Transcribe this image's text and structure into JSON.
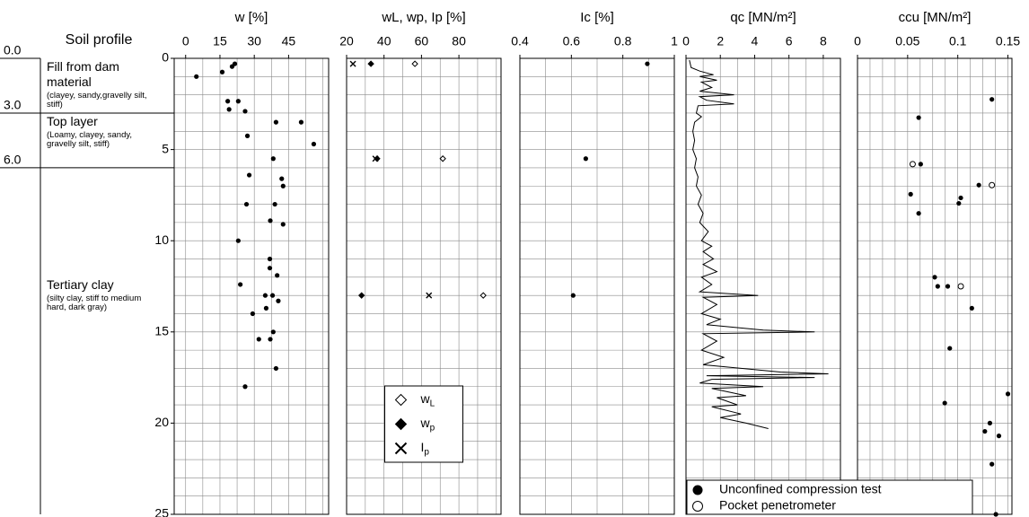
{
  "soil_profile": {
    "title": "Soil profile",
    "layers": [
      {
        "top": {
          "value": 0,
          "label": "0.0"
        },
        "name": "Fill from dam material",
        "note": "(clayey, sandy,gravelly silt, stiff)"
      },
      {
        "top": {
          "value": 3,
          "label": "3.0"
        },
        "name": "Top layer",
        "note": "(Loamy, clayey, sandy, gravelly silt, stiff)"
      },
      {
        "top": {
          "value": 6,
          "label": "6.0"
        },
        "name": "Tertiary clay",
        "note": "(silty clay, stiff to medium hard, dark gray)"
      }
    ]
  },
  "chart_data": [
    {
      "type": "scatter",
      "title": "w  [%]",
      "xlim": [
        -5,
        62.5
      ],
      "xticks": [
        0,
        15,
        30,
        45
      ],
      "xgrid": [
        0,
        7.5,
        15,
        22.5,
        30,
        37.5,
        45,
        52.5,
        60
      ],
      "ylim": [
        0,
        25
      ],
      "y_inverted": true,
      "yticks": [
        0,
        5,
        10,
        15,
        20,
        25
      ],
      "ygrid": [
        1,
        2,
        3,
        4,
        5,
        6,
        7,
        8,
        9,
        10,
        11,
        12,
        13,
        14,
        15,
        16,
        17,
        18,
        19,
        20,
        21,
        22,
        23,
        24
      ],
      "series": [
        {
          "marker": "filled-circle",
          "color": "#000000",
          "x": [
            21.5,
            20.3,
            16,
            4.7,
            18.4,
            19,
            23,
            26,
            39.5,
            50.5,
            27,
            56,
            38.3,
            27.8,
            42,
            42.6,
            26.6,
            39,
            37,
            42.6,
            23,
            36.8,
            36.8,
            40,
            23.9,
            34.8,
            38,
            40.5,
            35.2,
            29.3,
            38.3,
            32,
            37,
            39.5,
            26
          ],
          "y": [
            0.3,
            0.45,
            0.75,
            1.0,
            2.35,
            2.8,
            2.35,
            2.9,
            3.5,
            3.5,
            4.25,
            4.7,
            5.5,
            6.4,
            6.6,
            7.0,
            8.0,
            8.0,
            8.9,
            9.1,
            10,
            11,
            11.5,
            11.9,
            12.4,
            13,
            13,
            13.3,
            13.7,
            14,
            15,
            15.4,
            15.4,
            17,
            18
          ]
        }
      ]
    },
    {
      "type": "scatter",
      "title": "wL, wp, Ip  [%]",
      "xlim": [
        20,
        102.5
      ],
      "xticks": [
        20,
        40,
        60,
        80
      ],
      "xgrid": [
        30,
        40,
        50,
        60,
        70,
        80,
        90,
        100
      ],
      "ylim": [
        0,
        25
      ],
      "y_inverted": true,
      "ygrid": [
        1,
        2,
        3,
        4,
        5,
        6,
        7,
        8,
        9,
        10,
        11,
        12,
        13,
        14,
        15,
        16,
        17,
        18,
        19,
        20,
        21,
        22,
        23,
        24
      ],
      "legend": "lower-center",
      "series": [
        {
          "name": "wL",
          "marker": "open-diamond",
          "color": "#000000",
          "x": [
            56.5,
            71.4,
            93
          ],
          "y": [
            0.3,
            5.5,
            13
          ]
        },
        {
          "name": "wp",
          "marker": "filled-diamond",
          "color": "#000000",
          "x": [
            33,
            36.3,
            28
          ],
          "y": [
            0.3,
            5.5,
            13
          ]
        },
        {
          "name": "Ip",
          "marker": "cross",
          "color": "#000000",
          "x": [
            23.4,
            35.4,
            64
          ],
          "y": [
            0.3,
            5.5,
            13
          ]
        }
      ]
    },
    {
      "type": "scatter",
      "title": "Ic  [%]",
      "xlim": [
        0.4,
        1
      ],
      "xticks": [
        0.4,
        0.6,
        0.8,
        1
      ],
      "xgrid": [
        0.5,
        0.6,
        0.7,
        0.8,
        0.9
      ],
      "ylim": [
        0,
        25
      ],
      "y_inverted": true,
      "ygrid": [
        1,
        2,
        3,
        4,
        5,
        6,
        7,
        8,
        9,
        10,
        11,
        12,
        13,
        14,
        15,
        16,
        17,
        18,
        19,
        20,
        21,
        22,
        23,
        24
      ],
      "series": [
        {
          "marker": "filled-circle",
          "color": "#000000",
          "x": [
            0.895,
            0.656,
            0.607
          ],
          "y": [
            0.3,
            5.5,
            13
          ]
        }
      ]
    },
    {
      "type": "line",
      "title": "qc  [MN/m²]",
      "xlim": [
        0,
        9
      ],
      "xticks": [
        0,
        2,
        4,
        6,
        8
      ],
      "xgrid": [
        1,
        2,
        3,
        4,
        5,
        6,
        7,
        8
      ],
      "ylim": [
        0,
        25
      ],
      "y_inverted": true,
      "ygrid": [
        1,
        2,
        3,
        4,
        5,
        6,
        7,
        8,
        9,
        10,
        11,
        12,
        13,
        14,
        15,
        16,
        17,
        18,
        19,
        20,
        21,
        22,
        23,
        24
      ],
      "series": [
        {
          "color": "#000000",
          "x": [
            0.2,
            0.3,
            0.8,
            1.6,
            0.8,
            1.8,
            0.9,
            1.5,
            0.8,
            2.8,
            0.8,
            1.2,
            2.8,
            0.7,
            0.6,
            0.9,
            0.5,
            0.4,
            0.5,
            0.4,
            0.6,
            0.5,
            0.7,
            0.6,
            0.9,
            0.7,
            1.0,
            0.8,
            1.3,
            0.9,
            1.5,
            1.0,
            1.6,
            1.0,
            1.8,
            0.9,
            1.5,
            0.8,
            4.2,
            1.0,
            1.8,
            0.9,
            2.0,
            1.2,
            4.5,
            7.5,
            1.0,
            1.8,
            0.9,
            2.2,
            1.0,
            5.5,
            8.3,
            1.2,
            7.5,
            1.5,
            0.8,
            4.5,
            1.5,
            3.5,
            1.8,
            3.0,
            1.5,
            3.2,
            2.0,
            3.5,
            4.8
          ],
          "y": [
            0.1,
            0.5,
            0.7,
            0.9,
            1.0,
            1.2,
            1.3,
            1.6,
            1.8,
            2.0,
            2.1,
            2.3,
            2.5,
            2.6,
            3.0,
            3.2,
            3.5,
            4.0,
            4.5,
            5.0,
            5.5,
            6.0,
            6.5,
            7.0,
            7.5,
            8.0,
            8.5,
            9.0,
            9.5,
            10.0,
            10.3,
            10.6,
            11.0,
            11.3,
            11.7,
            12.0,
            12.4,
            12.8,
            13.0,
            13.1,
            13.5,
            14.0,
            14.3,
            14.6,
            14.9,
            15.0,
            15.1,
            15.5,
            16.0,
            16.4,
            16.8,
            17.2,
            17.3,
            17.4,
            17.5,
            17.6,
            17.8,
            18.0,
            18.1,
            18.5,
            18.6,
            19.0,
            19.1,
            19.5,
            19.7,
            20.0,
            20.3
          ]
        }
      ]
    },
    {
      "type": "scatter",
      "title": "ccu  [MN/m²]",
      "xlim": [
        0,
        0.154
      ],
      "xticks": [
        0,
        0.05,
        0.1,
        0.15
      ],
      "xgrid": [
        0.0125,
        0.025,
        0.0375,
        0.05,
        0.0625,
        0.075,
        0.0875,
        0.1,
        0.1125,
        0.125,
        0.1375,
        0.15
      ],
      "ylim": [
        0,
        25
      ],
      "y_inverted": true,
      "ygrid": [
        1,
        2,
        3,
        4,
        5,
        6,
        7,
        8,
        9,
        10,
        11,
        12,
        13,
        14,
        15,
        16,
        17,
        18,
        19,
        20,
        21,
        22,
        23,
        24
      ],
      "legend": "lower-left",
      "series": [
        {
          "name": "Unconfined compression test",
          "marker": "filled-circle",
          "color": "#000000",
          "x": [
            0.134,
            0.061,
            0.063,
            0.121,
            0.103,
            0.101,
            0.053,
            0.061,
            0.077,
            0.08,
            0.09,
            0.114,
            0.092,
            0.15,
            0.087,
            0.132,
            0.127,
            0.141,
            0.134,
            0.138
          ],
          "y": [
            2.25,
            3.25,
            5.8,
            6.95,
            7.65,
            7.95,
            7.45,
            8.5,
            12.0,
            12.5,
            12.5,
            13.7,
            15.9,
            18.4,
            18.9,
            20.0,
            20.45,
            20.7,
            22.25,
            25
          ]
        },
        {
          "name": "Pocket penetrometer",
          "marker": "open-circle",
          "color": "#000000",
          "x": [
            0.055,
            0.134,
            0.103
          ],
          "y": [
            5.8,
            6.95,
            12.5
          ]
        }
      ]
    }
  ]
}
